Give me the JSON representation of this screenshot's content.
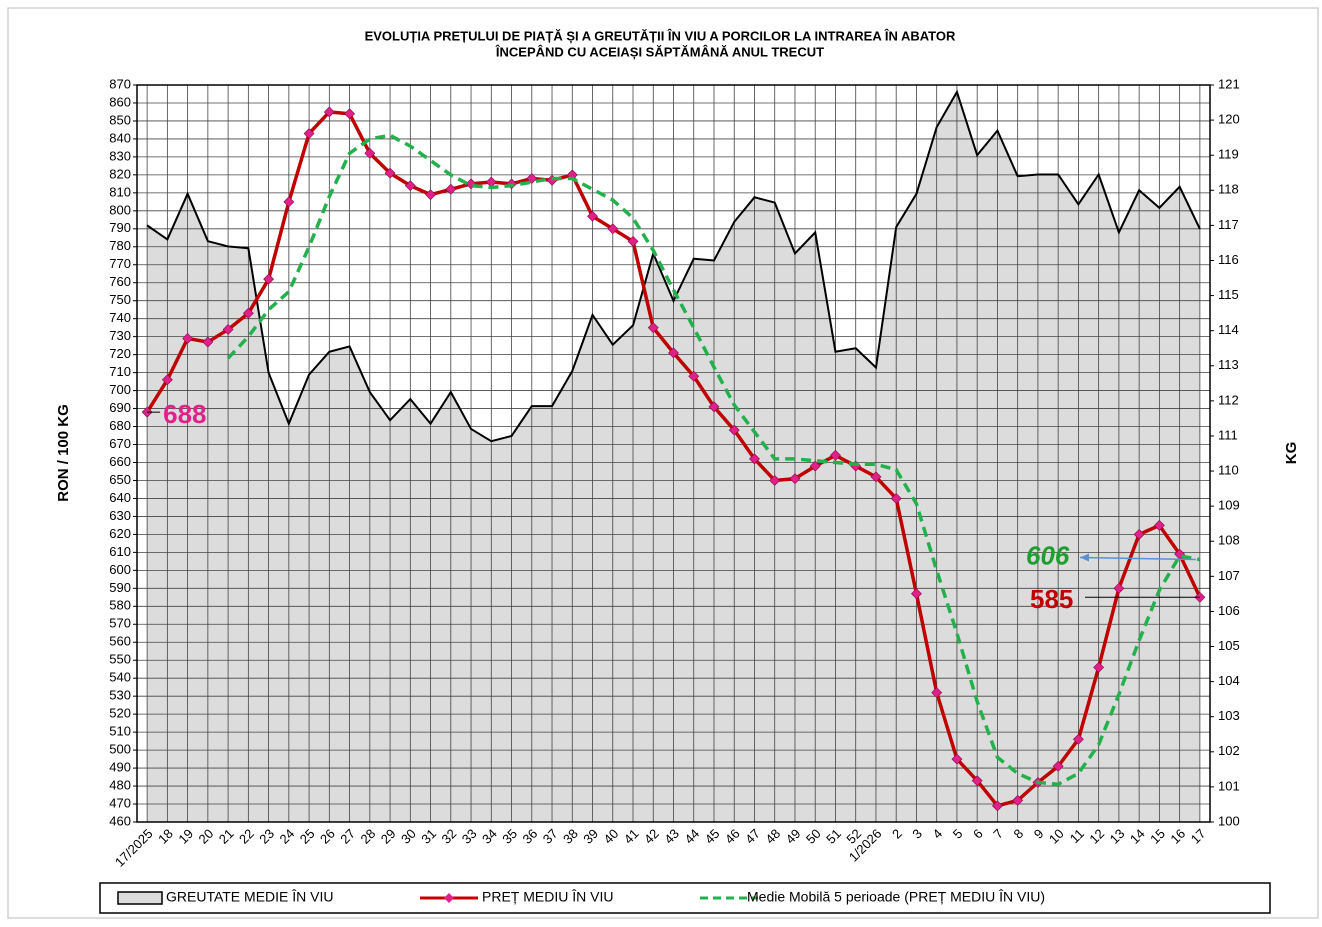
{
  "chart_data": {
    "type": "line",
    "title": "EVOLUȚIA PREȚULUI DE PIAȚĂ ȘI A GREUTĂȚII  ÎN VIU A PORCILOR LA INTRAREA  ÎN ABATOR",
    "subtitle": "ÎNCEPÂND  CU ACEIAȘI SĂPTĂMÂNĂ ANUL TRECUT",
    "y_label": "RON / 100 KG",
    "y2_label": "KG",
    "categories": [
      "17/2025",
      "18",
      "19",
      "20",
      "21",
      "22",
      "23",
      "24",
      "25",
      "26",
      "27",
      "28",
      "29",
      "30",
      "31",
      "32",
      "33",
      "34",
      "35",
      "36",
      "37",
      "38",
      "39",
      "40",
      "41",
      "42",
      "43",
      "44",
      "45",
      "46",
      "47",
      "48",
      "49",
      "50",
      "51",
      "52",
      "1/2026",
      "2",
      "3",
      "4",
      "5",
      "6",
      "7",
      "8",
      "9",
      "10",
      "11",
      "12",
      "13",
      "14",
      "15",
      "16",
      "17"
    ],
    "ylim": [
      460,
      870
    ],
    "yticks": [
      460,
      470,
      480,
      490,
      500,
      510,
      520,
      530,
      540,
      550,
      560,
      570,
      580,
      590,
      600,
      610,
      620,
      630,
      640,
      650,
      660,
      670,
      680,
      690,
      700,
      710,
      720,
      730,
      740,
      750,
      760,
      770,
      780,
      790,
      800,
      810,
      820,
      830,
      840,
      850,
      860,
      870
    ],
    "y2lim": [
      100,
      121
    ],
    "y2ticks": [
      100,
      101,
      102,
      103,
      104,
      105,
      106,
      107,
      108,
      109,
      110,
      111,
      112,
      113,
      114,
      115,
      116,
      117,
      118,
      119,
      120,
      121
    ],
    "grid": true,
    "legend": "bottom",
    "series": [
      {
        "name": "GREUTATE MEDIE ÎN VIU",
        "type": "area",
        "axis": "y2",
        "color": "#000000",
        "fill": "#dcdcdc",
        "values": [
          117.0,
          116.6,
          117.9,
          116.55,
          116.4,
          116.35,
          112.8,
          111.35,
          112.75,
          113.4,
          113.55,
          112.25,
          111.45,
          112.05,
          111.35,
          112.25,
          111.2,
          110.85,
          111.0,
          111.85,
          111.85,
          112.85,
          114.45,
          113.6,
          114.15,
          116.2,
          114.85,
          116.05,
          116.0,
          117.1,
          117.8,
          117.65,
          116.2,
          116.8,
          113.4,
          113.5,
          112.95,
          116.95,
          117.9,
          119.8,
          120.8,
          119.0,
          119.7,
          118.4,
          118.45,
          118.45,
          117.6,
          118.45,
          116.8,
          118.0,
          117.5,
          118.1,
          116.9
        ]
      },
      {
        "name": "PREȚ MEDIU ÎN VIU",
        "type": "line",
        "color": "#c00000",
        "marker_color": "#e0218a",
        "values": [
          688,
          706,
          729,
          727,
          734,
          743,
          762,
          805,
          843,
          855,
          854,
          832,
          821,
          814,
          809,
          812,
          815,
          816,
          815,
          818,
          817,
          820,
          797,
          790,
          783,
          735,
          721,
          708,
          691,
          678,
          662,
          650,
          651,
          658,
          664,
          658,
          652,
          640,
          587,
          532,
          495,
          483,
          469,
          472,
          482,
          491,
          506,
          546,
          590,
          620,
          625,
          609,
          585
        ]
      },
      {
        "name": "Medie Mobilă 5 perioade (PREȚ MEDIU ÎN VIU)",
        "type": "line",
        "color": "#22b14c",
        "dash": true,
        "values": [
          null,
          null,
          null,
          null,
          718,
          730,
          745,
          755,
          780,
          808,
          832,
          840,
          842,
          836,
          828,
          820,
          814,
          813,
          814,
          816,
          818,
          818,
          812,
          806,
          796,
          778,
          756,
          735,
          713,
          692,
          677,
          662,
          662,
          661,
          660,
          659,
          659,
          656,
          637,
          600,
          565,
          527,
          496,
          487,
          482,
          481,
          487,
          503,
          531,
          561,
          589,
          608,
          606
        ]
      }
    ]
  }
}
